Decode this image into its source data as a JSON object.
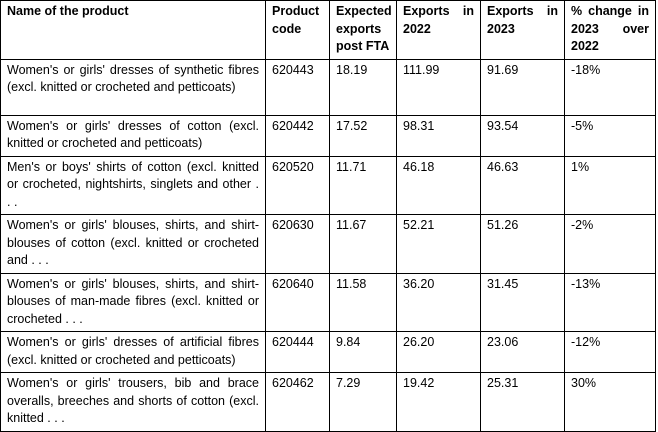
{
  "table": {
    "headers": [
      "Name of the product",
      "Product code",
      "Expected exports post FTA",
      "Exports in 2022",
      "Exports in 2023",
      "% change in 2023 over 2022"
    ],
    "rows": [
      [
        "Women's or girls' dresses of synthetic fibres (excl. knitted or crocheted and petticoats)",
        "620443",
        "18.19",
        "111.99",
        "91.69",
        "-18%"
      ],
      [
        "Women's or girls' dresses of cotton (excl. knitted or crocheted and petticoats)",
        "620442",
        "17.52",
        "98.31",
        "93.54",
        "-5%"
      ],
      [
        "Men's or boys' shirts of cotton (excl. knitted or crocheted, nightshirts, singlets and other . . .",
        "620520",
        "11.71",
        "46.18",
        "46.63",
        "1%"
      ],
      [
        "Women's or girls' blouses, shirts, and shirt-blouses of cotton (excl. knitted or crocheted and . . .",
        "620630",
        "11.67",
        "52.21",
        "51.26",
        "-2%"
      ],
      [
        "Women's or girls' blouses, shirts, and shirt-blouses of man-made fibres (excl. knitted or crocheted . . .",
        "620640",
        "11.58",
        "36.20",
        "31.45",
        "-13%"
      ],
      [
        "Women's or girls' dresses of artificial fibres (excl. knitted or crocheted and petticoats)",
        "620444",
        "9.84",
        "26.20",
        "23.06",
        "-12%"
      ],
      [
        "Women's or girls' trousers, bib and brace overalls, breeches and shorts of cotton (excl. knitted . . .",
        "620462",
        "7.29",
        "19.42",
        "25.31",
        "30%"
      ]
    ]
  }
}
